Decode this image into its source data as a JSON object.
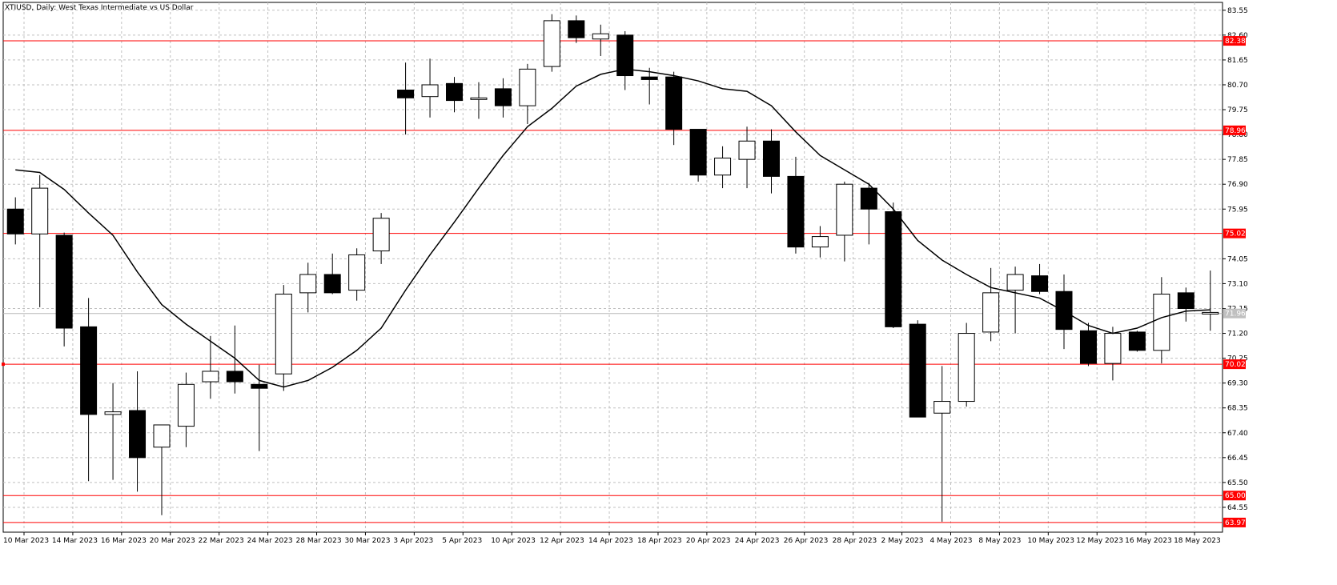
{
  "window": {
    "title": "XTIUSD, Daily:  West Texas Intermediate vs US Dollar"
  },
  "colors": {
    "background": "#ffffff",
    "grid": "#c0c0c0",
    "candle": "#000000",
    "level_line": "#ff0000",
    "level_tag_bg": "#ff0000",
    "current_price_line": "#b8b8b8",
    "current_price_tag_bg": "#c0c0c0"
  },
  "chart_data": {
    "type": "candlestick",
    "title": "XTIUSD, Daily:  West Texas Intermediate vs US Dollar",
    "ylim": [
      63.6,
      83.85
    ],
    "grid": true,
    "y_ticks": [
      "83.55",
      "82.60",
      "81.65",
      "80.70",
      "79.75",
      "78.80",
      "77.85",
      "76.90",
      "75.95",
      "74.05",
      "73.10",
      "72.15",
      "71.20",
      "70.25",
      "69.30",
      "68.35",
      "67.40",
      "66.45",
      "65.50",
      "64.55"
    ],
    "x_labels": [
      "10 Mar 2023",
      "14 Mar 2023",
      "16 Mar 2023",
      "20 Mar 2023",
      "22 Mar 2023",
      "24 Mar 2023",
      "28 Mar 2023",
      "30 Mar 2023",
      "3 Apr 2023",
      "5 Apr 2023",
      "10 Apr 2023",
      "12 Apr 2023",
      "14 Apr 2023",
      "18 Apr 2023",
      "20 Apr 2023",
      "24 Apr 2023",
      "26 Apr 2023",
      "28 Apr 2023",
      "2 May 2023",
      "4 May 2023",
      "8 May 2023",
      "10 May 2023",
      "12 May 2023",
      "16 May 2023",
      "18 May 2023"
    ],
    "candles": [
      {
        "o": 75.95,
        "h": 76.4,
        "l": 74.6,
        "c": 75.0
      },
      {
        "o": 75.0,
        "h": 77.25,
        "l": 72.2,
        "c": 76.75
      },
      {
        "o": 74.95,
        "h": 75.05,
        "l": 70.7,
        "c": 71.4
      },
      {
        "o": 71.45,
        "h": 72.55,
        "l": 65.55,
        "c": 68.1
      },
      {
        "o": 68.1,
        "h": 69.3,
        "l": 65.6,
        "c": 68.2
      },
      {
        "o": 68.25,
        "h": 69.75,
        "l": 65.15,
        "c": 66.45
      },
      {
        "o": 66.85,
        "h": 67.65,
        "l": 64.25,
        "c": 67.7
      },
      {
        "o": 67.65,
        "h": 69.7,
        "l": 66.85,
        "c": 69.25
      },
      {
        "o": 69.35,
        "h": 71.1,
        "l": 68.7,
        "c": 69.75
      },
      {
        "o": 69.75,
        "h": 71.5,
        "l": 68.9,
        "c": 69.35
      },
      {
        "o": 69.25,
        "h": 70.0,
        "l": 66.7,
        "c": 69.1
      },
      {
        "o": 69.65,
        "h": 73.05,
        "l": 69.0,
        "c": 72.7
      },
      {
        "o": 72.75,
        "h": 73.9,
        "l": 72.0,
        "c": 73.45
      },
      {
        "o": 73.45,
        "h": 74.25,
        "l": 72.7,
        "c": 72.75
      },
      {
        "o": 72.85,
        "h": 74.45,
        "l": 72.45,
        "c": 74.2
      },
      {
        "o": 74.35,
        "h": 75.8,
        "l": 73.85,
        "c": 75.6
      },
      {
        "o": 80.5,
        "h": 81.55,
        "l": 78.8,
        "c": 80.2
      },
      {
        "o": 80.25,
        "h": 81.7,
        "l": 79.45,
        "c": 80.7
      },
      {
        "o": 80.75,
        "h": 81.0,
        "l": 79.65,
        "c": 80.1
      },
      {
        "o": 80.2,
        "h": 80.8,
        "l": 79.4,
        "c": 80.2
      },
      {
        "o": 80.55,
        "h": 80.95,
        "l": 79.45,
        "c": 79.9
      },
      {
        "o": 79.9,
        "h": 81.5,
        "l": 79.2,
        "c": 81.3
      },
      {
        "o": 81.4,
        "h": 83.4,
        "l": 81.2,
        "c": 83.15
      },
      {
        "o": 83.15,
        "h": 83.35,
        "l": 82.3,
        "c": 82.5
      },
      {
        "o": 82.45,
        "h": 83.0,
        "l": 81.8,
        "c": 82.65
      },
      {
        "o": 82.6,
        "h": 82.75,
        "l": 80.5,
        "c": 81.05
      },
      {
        "o": 81.0,
        "h": 81.35,
        "l": 79.95,
        "c": 80.9
      },
      {
        "o": 81.0,
        "h": 81.2,
        "l": 78.4,
        "c": 79.0
      },
      {
        "o": 79.0,
        "h": 79.0,
        "l": 77.0,
        "c": 77.25
      },
      {
        "o": 77.25,
        "h": 78.35,
        "l": 76.75,
        "c": 77.9
      },
      {
        "o": 77.85,
        "h": 79.1,
        "l": 76.75,
        "c": 78.55
      },
      {
        "o": 78.55,
        "h": 79.0,
        "l": 76.55,
        "c": 77.2
      },
      {
        "o": 77.2,
        "h": 77.95,
        "l": 74.25,
        "c": 74.5
      },
      {
        "o": 74.5,
        "h": 75.3,
        "l": 74.1,
        "c": 74.9
      },
      {
        "o": 74.95,
        "h": 77.0,
        "l": 73.95,
        "c": 76.9
      },
      {
        "o": 76.75,
        "h": 76.95,
        "l": 74.6,
        "c": 75.95
      },
      {
        "o": 75.85,
        "h": 76.2,
        "l": 71.4,
        "c": 71.45
      },
      {
        "o": 71.55,
        "h": 71.7,
        "l": 68.05,
        "c": 68.0
      },
      {
        "o": 68.15,
        "h": 69.95,
        "l": 64.0,
        "c": 68.6
      },
      {
        "o": 68.6,
        "h": 71.6,
        "l": 68.4,
        "c": 71.2
      },
      {
        "o": 71.25,
        "h": 73.7,
        "l": 70.9,
        "c": 72.75
      },
      {
        "o": 72.85,
        "h": 73.75,
        "l": 71.2,
        "c": 73.45
      },
      {
        "o": 73.4,
        "h": 73.85,
        "l": 72.7,
        "c": 72.8
      },
      {
        "o": 72.8,
        "h": 73.45,
        "l": 70.6,
        "c": 71.35
      },
      {
        "o": 71.3,
        "h": 71.6,
        "l": 69.95,
        "c": 70.05
      },
      {
        "o": 70.05,
        "h": 71.45,
        "l": 69.4,
        "c": 71.2
      },
      {
        "o": 71.25,
        "h": 71.3,
        "l": 70.5,
        "c": 70.55
      },
      {
        "o": 70.55,
        "h": 73.35,
        "l": 70.05,
        "c": 72.7
      },
      {
        "o": 72.75,
        "h": 72.95,
        "l": 71.65,
        "c": 72.15
      },
      {
        "o": 71.95,
        "h": 73.6,
        "l": 71.3,
        "c": 72.0
      }
    ],
    "moving_average": [
      77.45,
      77.35,
      76.7,
      75.8,
      74.95,
      73.55,
      72.3,
      71.55,
      70.9,
      70.25,
      69.4,
      69.15,
      69.4,
      69.9,
      70.55,
      71.4,
      72.85,
      74.2,
      75.45,
      76.75,
      78.0,
      79.1,
      79.8,
      80.65,
      81.1,
      81.3,
      81.2,
      81.05,
      80.85,
      80.55,
      80.45,
      79.9,
      78.9,
      78.0,
      77.45,
      76.9,
      75.95,
      74.75,
      74.0,
      73.45,
      72.95,
      72.75,
      72.55,
      72.05,
      71.5,
      71.2,
      71.4,
      71.8,
      72.05,
      72.1
    ],
    "horizontal_levels": [
      {
        "value": 82.38,
        "label": "82.38"
      },
      {
        "value": 78.96,
        "label": "78.96"
      },
      {
        "value": 75.02,
        "label": "75.02"
      },
      {
        "value": 70.02,
        "label": "70.02"
      },
      {
        "value": 65.0,
        "label": "65.00"
      },
      {
        "value": 63.97,
        "label": "63.97"
      }
    ],
    "current_price": {
      "value": 71.96,
      "label": "71.96"
    }
  }
}
